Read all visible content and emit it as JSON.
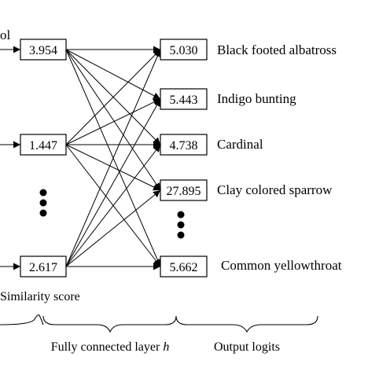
{
  "partial_left_label": "ol",
  "left_nodes": [
    {
      "value": "3.954"
    },
    {
      "value": "1.447"
    },
    {
      "value": "2.617"
    }
  ],
  "right_nodes": [
    {
      "value": "5.030",
      "label": "Black footed albatross"
    },
    {
      "value": "5.443",
      "label": "Indigo bunting"
    },
    {
      "value": "4.738",
      "label": "Cardinal"
    },
    {
      "value": "27.895",
      "label": "Clay colored sparrow"
    },
    {
      "value": "5.662",
      "label": "Common yellowthroat"
    }
  ],
  "similarity_caption": "Similarity score",
  "fc_caption": "Fully connected layer ",
  "fc_caption_italic": "h",
  "output_caption": "Output logits"
}
